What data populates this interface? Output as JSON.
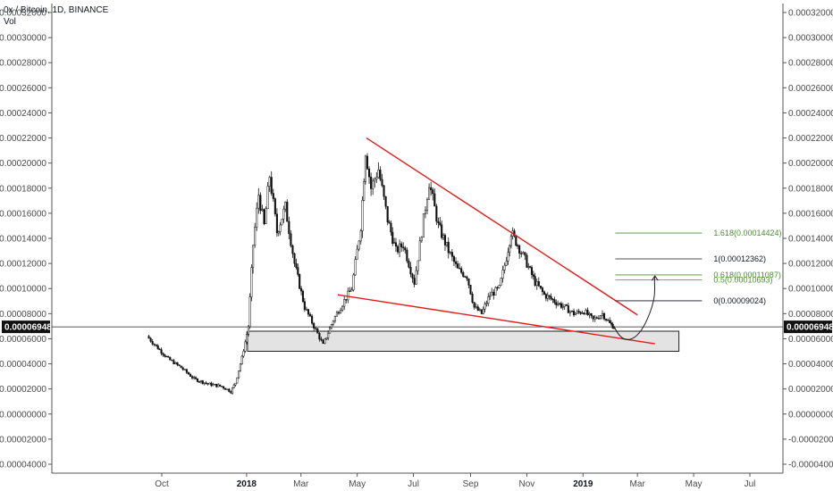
{
  "header": {
    "title": "0x / Bitcoin, 1D, BINANCE",
    "indicator": "Vol"
  },
  "chart_data": {
    "type": "candlestick",
    "y_ticks": [
      "0.00032000",
      "0.00030000",
      "0.00028000",
      "0.00026000",
      "0.00024000",
      "0.00022000",
      "0.00020000",
      "0.00018000",
      "0.00016000",
      "0.00014000",
      "0.00012000",
      "0.00010000",
      "0.00008000",
      "0.00006000",
      "0.00004000",
      "0.00002000",
      "0.00000000",
      "-0.00002000",
      "-0.00004000"
    ],
    "x_ticks": [
      {
        "label": "Oct",
        "bold": false
      },
      {
        "label": "2018",
        "bold": true
      },
      {
        "label": "Mar",
        "bold": false
      },
      {
        "label": "May",
        "bold": false
      },
      {
        "label": "Jul",
        "bold": false
      },
      {
        "label": "Sep",
        "bold": false
      },
      {
        "label": "Nov",
        "bold": false
      },
      {
        "label": "2019",
        "bold": true
      },
      {
        "label": "Mar",
        "bold": false
      },
      {
        "label": "May",
        "bold": false
      },
      {
        "label": "Jul",
        "bold": false
      }
    ],
    "ylim": [
      -4e-05,
      0.00032
    ],
    "current_price": "0.00006948",
    "price_path": [
      [
        "2017-09-15",
        6.2e-05
      ],
      [
        "2017-09-25",
        5.4e-05
      ],
      [
        "2017-10-08",
        4.4e-05
      ],
      [
        "2017-10-22",
        3.7e-05
      ],
      [
        "2017-11-05",
        2.8e-05
      ],
      [
        "2017-11-20",
        2.4e-05
      ],
      [
        "2017-12-05",
        2.2e-05
      ],
      [
        "2017-12-15",
        1.8e-05
      ],
      [
        "2017-12-20",
        2.5e-05
      ],
      [
        "2017-12-27",
        4.5e-05
      ],
      [
        "2018-01-03",
        7e-05
      ],
      [
        "2018-01-08",
        0.000135
      ],
      [
        "2018-01-14",
        0.000175
      ],
      [
        "2018-01-20",
        0.00015
      ],
      [
        "2018-01-26",
        0.00019
      ],
      [
        "2018-02-03",
        0.000145
      ],
      [
        "2018-02-12",
        0.000165
      ],
      [
        "2018-02-22",
        0.00012
      ],
      [
        "2018-03-05",
        8.5e-05
      ],
      [
        "2018-03-15",
        7e-05
      ],
      [
        "2018-03-25",
        5.5e-05
      ],
      [
        "2018-04-05",
        7.5e-05
      ],
      [
        "2018-04-15",
        8.8e-05
      ],
      [
        "2018-04-25",
        0.0001
      ],
      [
        "2018-05-05",
        0.00015
      ],
      [
        "2018-05-10",
        0.00021
      ],
      [
        "2018-05-16",
        0.00018
      ],
      [
        "2018-05-24",
        0.000195
      ],
      [
        "2018-06-03",
        0.000155
      ],
      [
        "2018-06-12",
        0.00013
      ],
      [
        "2018-06-20",
        0.000135
      ],
      [
        "2018-07-02",
        0.000105
      ],
      [
        "2018-07-12",
        0.000155
      ],
      [
        "2018-07-18",
        0.000185
      ],
      [
        "2018-07-28",
        0.00015
      ],
      [
        "2018-08-08",
        0.00013
      ],
      [
        "2018-08-18",
        0.000115
      ],
      [
        "2018-08-28",
        0.00011
      ],
      [
        "2018-09-05",
        8.5e-05
      ],
      [
        "2018-09-13",
        8e-05
      ],
      [
        "2018-09-22",
        9.5e-05
      ],
      [
        "2018-10-02",
        0.0001
      ],
      [
        "2018-10-10",
        0.000125
      ],
      [
        "2018-10-15",
        0.000145
      ],
      [
        "2018-10-22",
        0.000135
      ],
      [
        "2018-11-01",
        0.00012
      ],
      [
        "2018-11-10",
        0.000105
      ],
      [
        "2018-11-20",
        9.5e-05
      ],
      [
        "2018-12-01",
        9e-05
      ],
      [
        "2018-12-12",
        8.5e-05
      ],
      [
        "2018-12-22",
        8e-05
      ],
      [
        "2019-01-02",
        8.2e-05
      ],
      [
        "2019-01-12",
        7.5e-05
      ],
      [
        "2019-01-22",
        8e-05
      ],
      [
        "2019-01-30",
        7.2e-05
      ],
      [
        "2019-02-04",
        6.94e-05
      ]
    ],
    "support_box": {
      "from": "2018-01-02",
      "to": "2019-04-15",
      "top": 6.6e-05,
      "bottom": 5e-05
    },
    "trendlines": [
      {
        "name": "upper-resistance",
        "from": [
          "2018-05-11",
          0.00022
        ],
        "to": [
          "2019-03-01",
          7.9e-05
        ],
        "color": "#e21b1b"
      },
      {
        "name": "lower-support",
        "from": [
          "2018-04-10",
          9.5e-05
        ],
        "to": [
          "2019-03-20",
          5.6e-05
        ],
        "color": "#e21b1b"
      }
    ],
    "fib_levels": [
      {
        "label": "1.618(0.00014424)",
        "value": 0.00014424,
        "color": "#4b8f2f"
      },
      {
        "label": "1(0.00012362)",
        "value": 0.00012362,
        "color": "#131722"
      },
      {
        "label": "0.618(0.00011087)",
        "value": 0.00011087,
        "color": "#4b8f2f"
      },
      {
        "label": "0.5(0.00010693)",
        "value": 0.00010693,
        "color": "#4b8f2f"
      },
      {
        "label": "0(0.00009024)",
        "value": 9.024e-05,
        "color": "#131722"
      }
    ],
    "fib_range": {
      "from": "2019-02-05",
      "to": "2019-05-10"
    },
    "grid": false
  }
}
